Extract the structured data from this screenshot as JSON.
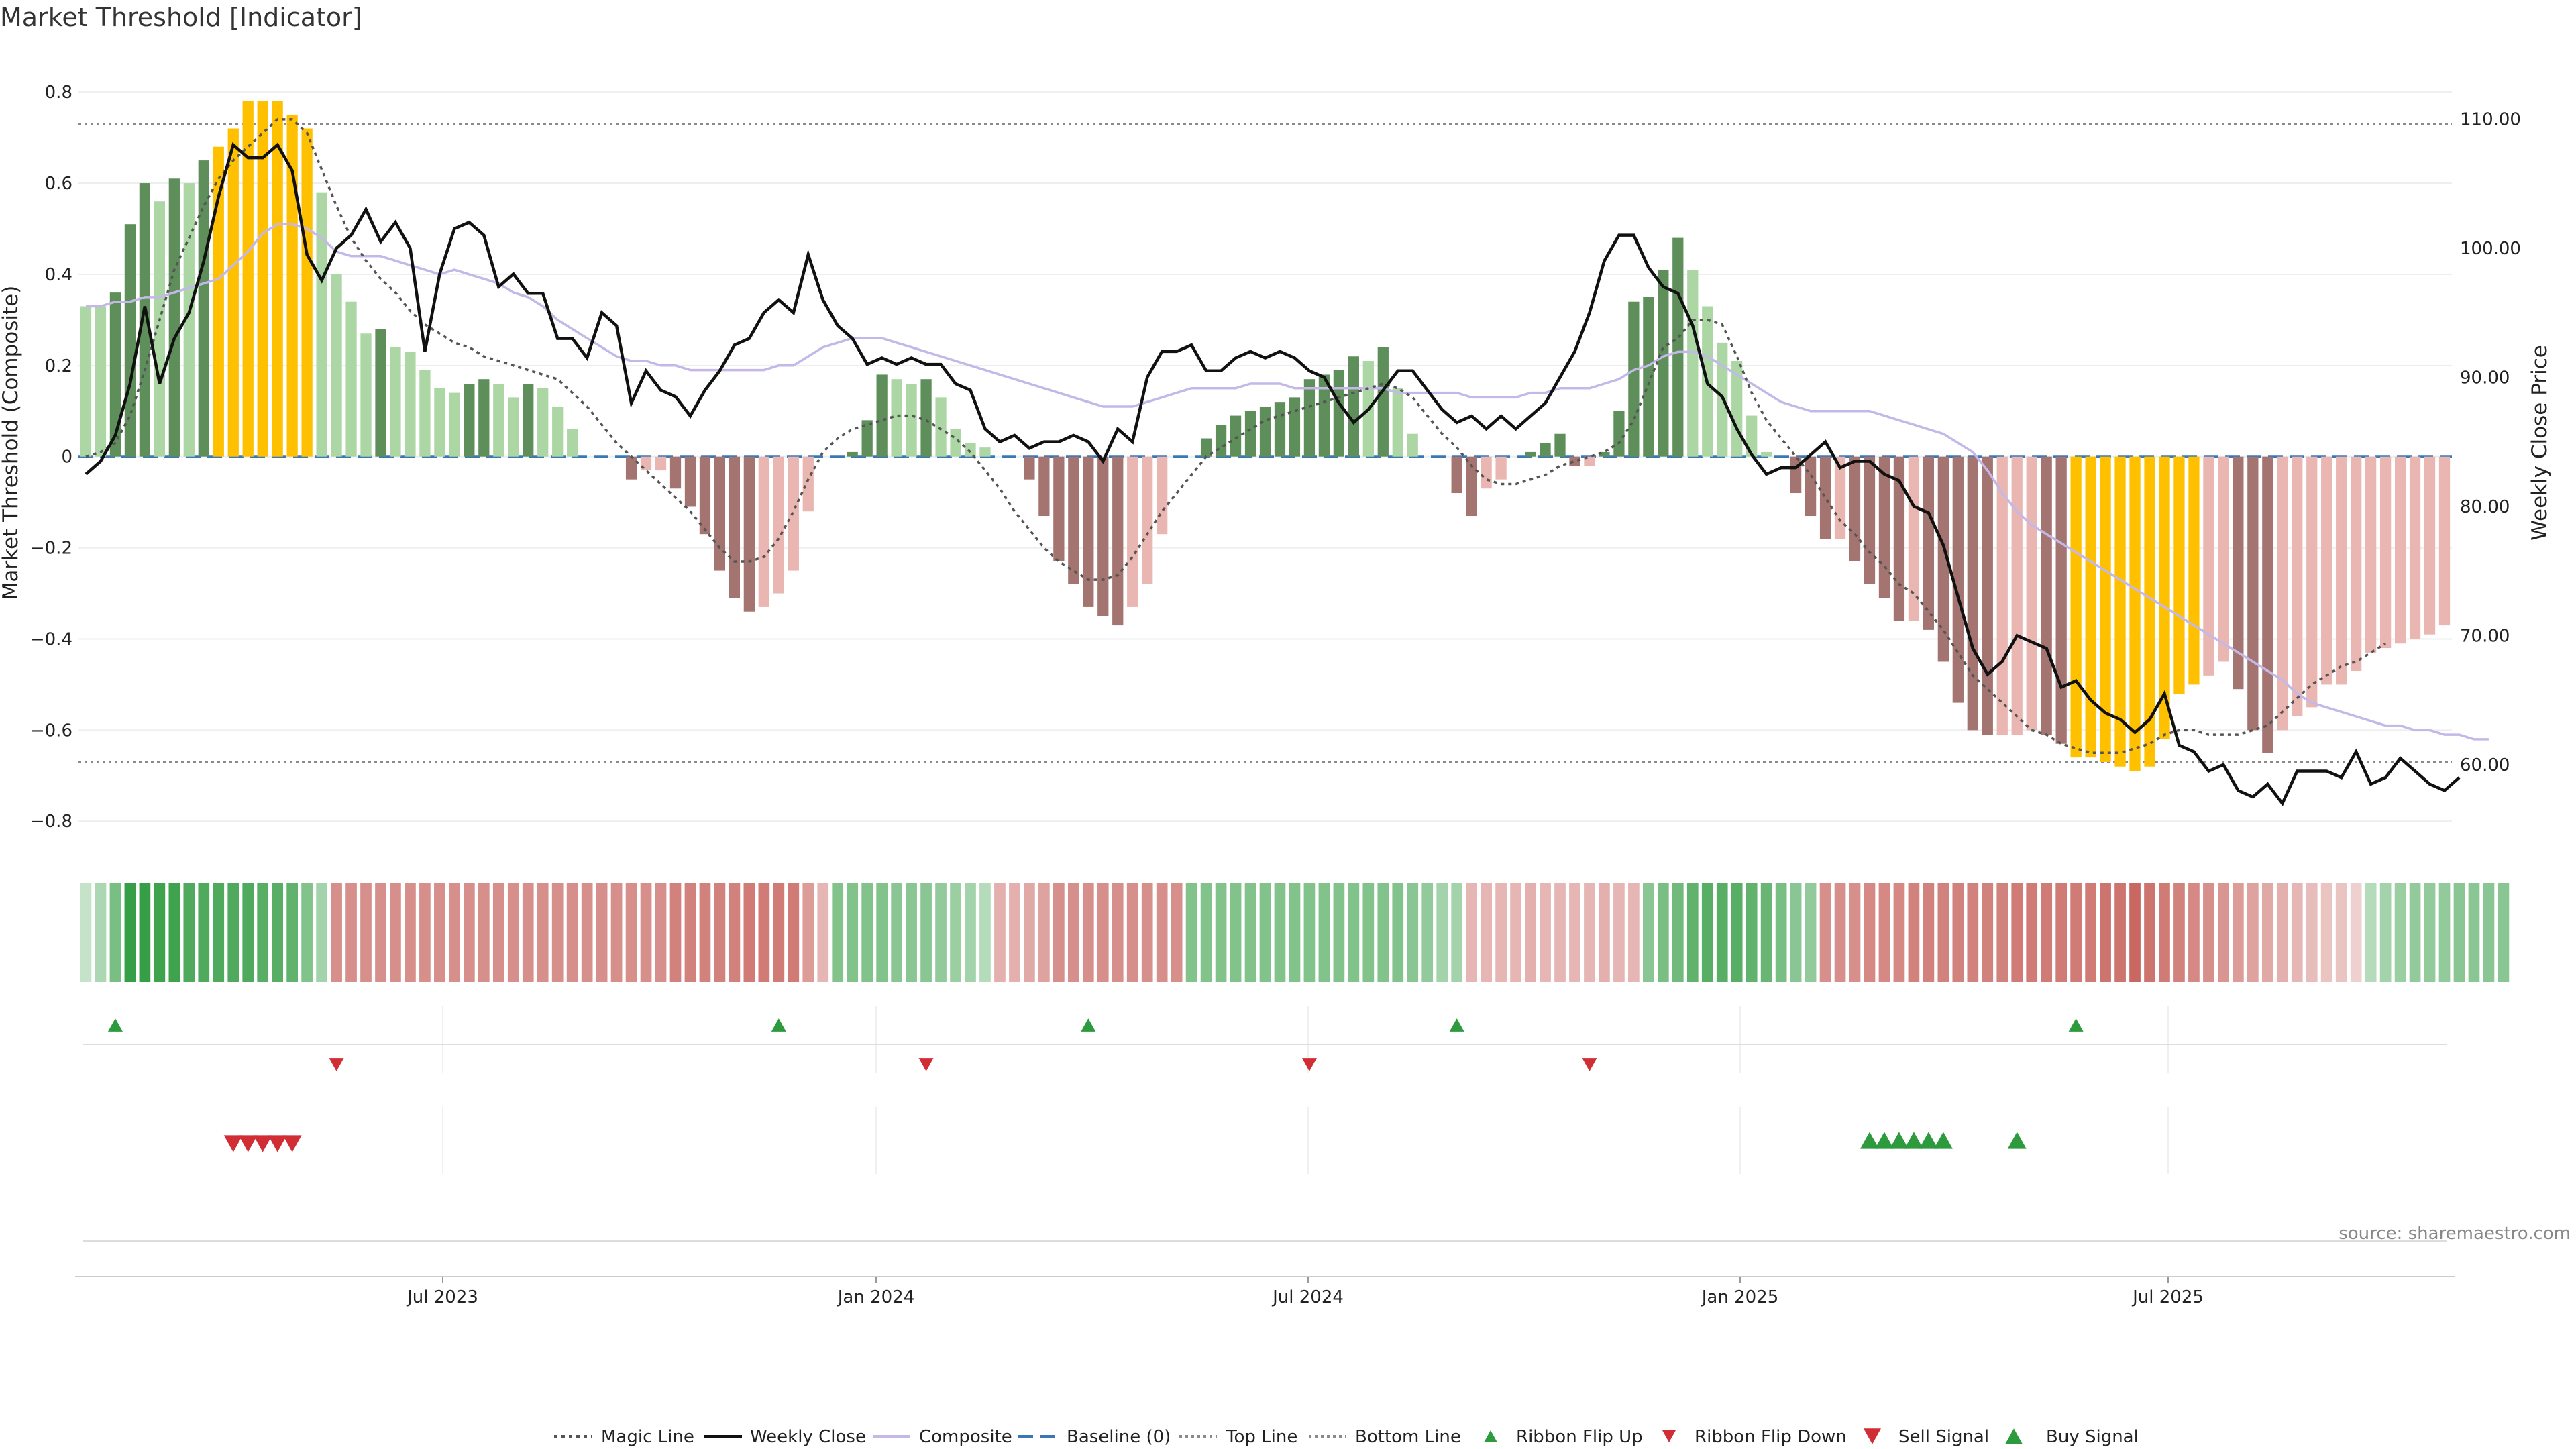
{
  "chart_data": {
    "type": "bar",
    "title": "Market Threshold [Indicator]",
    "ylabel": "Market Threshold (Composite)",
    "ylabel_right": "Weekly Close Price",
    "ylim": [
      -0.86,
      0.84
    ],
    "ylim_right": [
      53.5,
      113.5
    ],
    "yticks": [
      "0.8",
      "0.6",
      "0.4",
      "0.2",
      "0",
      "−0.2",
      "−0.4",
      "−0.6",
      "−0.8"
    ],
    "yticks_right": [
      "110.00",
      "100.00",
      "90.00",
      "80.00",
      "70.00",
      "60.00"
    ],
    "xticks": [
      "Jul 2023",
      "Jan 2024",
      "Jul 2024",
      "Jan 2025",
      "Jul 2025"
    ],
    "grid": true,
    "legend_position": "bottom-center",
    "source": "source: sharemaestro.com",
    "top_line": 0.73,
    "bottom_line": -0.67,
    "legend": [
      "Magic Line",
      "Weekly Close",
      "Composite",
      "Baseline (0)",
      "Top Line",
      "Bottom Line",
      "Ribbon Flip Up",
      "Ribbon Flip Down",
      "Sell Signal",
      "Buy Signal"
    ],
    "colors": {
      "strong_up": "#5e8f5b",
      "weak_up": "#acd7a5",
      "strong_down": "#a37470",
      "weak_down": "#e9b6b1",
      "extreme": "#ffc000",
      "close": "#111111",
      "composite": "#c4b8e8",
      "magic": "#555555",
      "baseline": "#3a78b5",
      "threshold": "#999999",
      "flip_up": "#2e9a3e",
      "flip_down": "#d12d35"
    },
    "series": [
      {
        "name": "Composite",
        "kind": "bar",
        "values": [
          0.33,
          0.33,
          0.36,
          0.51,
          0.6,
          0.56,
          0.61,
          0.6,
          0.65,
          0.68,
          0.72,
          0.78,
          0.78,
          0.78,
          0.75,
          0.72,
          0.58,
          0.4,
          0.34,
          0.27,
          0.28,
          0.24,
          0.23,
          0.19,
          0.15,
          0.14,
          0.16,
          0.17,
          0.16,
          0.13,
          0.16,
          0.15,
          0.11,
          0.06,
          0,
          0,
          0,
          -0.05,
          -0.03,
          -0.03,
          -0.07,
          -0.11,
          -0.17,
          -0.25,
          -0.31,
          -0.34,
          -0.33,
          -0.3,
          -0.25,
          -0.12,
          0,
          0,
          0.01,
          0.08,
          0.18,
          0.17,
          0.16,
          0.17,
          0.13,
          0.06,
          0.03,
          0.02,
          0,
          0,
          -0.05,
          -0.13,
          -0.23,
          -0.28,
          -0.33,
          -0.35,
          -0.37,
          -0.33,
          -0.28,
          -0.17,
          0,
          0,
          0.04,
          0.07,
          0.09,
          0.1,
          0.11,
          0.12,
          0.13,
          0.17,
          0.18,
          0.19,
          0.22,
          0.21,
          0.24,
          0.15,
          0.05,
          0,
          0,
          -0.08,
          -0.13,
          -0.07,
          -0.05,
          0,
          0.01,
          0.03,
          0.05,
          -0.02,
          -0.02,
          0.01,
          0.1,
          0.34,
          0.35,
          0.41,
          0.48,
          0.41,
          0.33,
          0.25,
          0.21,
          0.09,
          0.01,
          0,
          -0.08,
          -0.13,
          -0.18,
          -0.18,
          -0.23,
          -0.28,
          -0.31,
          -0.36,
          -0.36,
          -0.38,
          -0.45,
          -0.54,
          -0.6,
          -0.61,
          -0.61,
          -0.61,
          -0.6,
          -0.61,
          -0.63,
          -0.66,
          -0.66,
          -0.67,
          -0.68,
          -0.69,
          -0.68,
          -0.62,
          -0.52,
          -0.5,
          -0.48,
          -0.45,
          -0.51,
          -0.6,
          -0.65,
          -0.6,
          -0.57,
          -0.55,
          -0.5,
          -0.5,
          -0.47,
          -0.43,
          -0.42,
          -0.41,
          -0.4,
          -0.39,
          -0.37
        ]
      },
      {
        "name": "Magic Line",
        "kind": "line",
        "values": [
          0.0,
          0.01,
          0.03,
          0.09,
          0.19,
          0.3,
          0.41,
          0.48,
          0.55,
          0.61,
          0.65,
          0.68,
          0.71,
          0.74,
          0.74,
          0.71,
          0.63,
          0.55,
          0.48,
          0.43,
          0.39,
          0.36,
          0.32,
          0.29,
          0.27,
          0.25,
          0.24,
          0.22,
          0.21,
          0.2,
          0.19,
          0.18,
          0.17,
          0.14,
          0.11,
          0.07,
          0.03,
          0.0,
          -0.03,
          -0.06,
          -0.09,
          -0.12,
          -0.16,
          -0.2,
          -0.23,
          -0.23,
          -0.22,
          -0.18,
          -0.12,
          -0.05,
          0.01,
          0.04,
          0.06,
          0.07,
          0.08,
          0.09,
          0.09,
          0.08,
          0.06,
          0.04,
          0.01,
          -0.03,
          -0.07,
          -0.12,
          -0.16,
          -0.2,
          -0.23,
          -0.25,
          -0.27,
          -0.27,
          -0.26,
          -0.22,
          -0.17,
          -0.12,
          -0.08,
          -0.04,
          0.0,
          0.02,
          0.04,
          0.06,
          0.08,
          0.09,
          0.1,
          0.11,
          0.12,
          0.13,
          0.14,
          0.15,
          0.16,
          0.15,
          0.13,
          0.09,
          0.05,
          0.02,
          -0.02,
          -0.05,
          -0.06,
          -0.06,
          -0.05,
          -0.04,
          -0.02,
          -0.01,
          0.0,
          0.01,
          0.03,
          0.08,
          0.16,
          0.24,
          0.26,
          0.3,
          0.3,
          0.29,
          0.22,
          0.14,
          0.08,
          0.04,
          0.0,
          -0.04,
          -0.09,
          -0.14,
          -0.17,
          -0.21,
          -0.24,
          -0.28,
          -0.3,
          -0.34,
          -0.38,
          -0.43,
          -0.48,
          -0.51,
          -0.54,
          -0.57,
          -0.6,
          -0.61,
          -0.63,
          -0.64,
          -0.65,
          -0.65,
          -0.65,
          -0.64,
          -0.63,
          -0.61,
          -0.6,
          -0.6,
          -0.61,
          -0.61,
          -0.61,
          -0.6,
          -0.59,
          -0.56,
          -0.53,
          -0.5,
          -0.48,
          -0.46,
          -0.45,
          -0.43,
          -0.41
        ]
      },
      {
        "name": "Weekly Close",
        "kind": "line",
        "values": [
          82.5,
          83.5,
          85.5,
          89.5,
          95.5,
          89.5,
          93.0,
          95.0,
          99.0,
          104.0,
          108.0,
          107.0,
          107.0,
          108.0,
          106.0,
          99.5,
          97.5,
          100.0,
          101.0,
          103.0,
          100.5,
          102.0,
          100.0,
          92.0,
          98.0,
          101.5,
          102.0,
          101.0,
          97.0,
          98.0,
          96.5,
          96.5,
          93.0,
          93.0,
          91.5,
          95.0,
          94.0,
          88.0,
          90.5,
          89.0,
          88.5,
          87.0,
          89.0,
          90.5,
          92.5,
          93.0,
          95.0,
          96.0,
          95.0,
          99.5,
          96.0,
          94.0,
          93.0,
          91.0,
          91.5,
          91.0,
          91.5,
          91.0,
          91.0,
          89.5,
          89.0,
          86.0,
          85.0,
          85.5,
          84.5,
          85.0,
          85.0,
          85.5,
          85.0,
          83.5,
          86.0,
          85.0,
          90.0,
          92.0,
          92.0,
          92.5,
          90.5,
          90.5,
          91.5,
          92.0,
          91.5,
          92.0,
          91.5,
          90.5,
          90.0,
          88.0,
          86.5,
          87.5,
          89.0,
          90.5,
          90.5,
          89.0,
          87.5,
          86.5,
          87.0,
          86.0,
          87.0,
          86.0,
          87.0,
          88.0,
          90.0,
          92.0,
          95.0,
          99.0,
          101.0,
          101.0,
          98.5,
          97.0,
          96.5,
          94.0,
          89.5,
          88.5,
          86.0,
          84.0,
          82.5,
          83.0,
          83.0,
          84.0,
          85.0,
          83.0,
          83.5,
          83.5,
          82.5,
          82.0,
          80.0,
          79.5,
          77.0,
          73.0,
          69.0,
          67.0,
          68.0,
          70.0,
          69.5,
          69.0,
          66.0,
          66.5,
          65.0,
          64.0,
          63.5,
          62.5,
          63.5,
          65.5,
          61.5,
          61.0,
          59.5,
          60.0,
          58.0,
          57.5,
          58.5,
          57.0,
          59.5,
          59.5,
          59.5,
          59.0,
          61.0,
          58.5,
          59.0,
          60.5,
          59.5,
          58.5,
          58.0,
          59.0
        ]
      },
      {
        "name": "Composite",
        "kind": "line",
        "values": [
          0.33,
          0.33,
          0.34,
          0.34,
          0.35,
          0.35,
          0.36,
          0.37,
          0.38,
          0.39,
          0.42,
          0.45,
          0.49,
          0.51,
          0.51,
          0.5,
          0.48,
          0.45,
          0.44,
          0.44,
          0.44,
          0.43,
          0.42,
          0.41,
          0.4,
          0.41,
          0.4,
          0.39,
          0.38,
          0.36,
          0.35,
          0.33,
          0.3,
          0.28,
          0.26,
          0.24,
          0.22,
          0.21,
          0.21,
          0.2,
          0.2,
          0.19,
          0.19,
          0.19,
          0.19,
          0.19,
          0.19,
          0.2,
          0.2,
          0.22,
          0.24,
          0.25,
          0.26,
          0.26,
          0.26,
          0.25,
          0.24,
          0.23,
          0.22,
          0.21,
          0.2,
          0.19,
          0.18,
          0.17,
          0.16,
          0.15,
          0.14,
          0.13,
          0.12,
          0.11,
          0.11,
          0.11,
          0.12,
          0.13,
          0.14,
          0.15,
          0.15,
          0.15,
          0.15,
          0.16,
          0.16,
          0.16,
          0.15,
          0.15,
          0.15,
          0.15,
          0.15,
          0.15,
          0.15,
          0.14,
          0.14,
          0.14,
          0.14,
          0.14,
          0.13,
          0.13,
          0.13,
          0.13,
          0.14,
          0.14,
          0.15,
          0.15,
          0.15,
          0.16,
          0.17,
          0.19,
          0.2,
          0.22,
          0.23,
          0.23,
          0.22,
          0.2,
          0.18,
          0.16,
          0.14,
          0.12,
          0.11,
          0.1,
          0.1,
          0.1,
          0.1,
          0.1,
          0.09,
          0.08,
          0.07,
          0.06,
          0.05,
          0.03,
          0.01,
          -0.03,
          -0.08,
          -0.12,
          -0.15,
          -0.17,
          -0.19,
          -0.21,
          -0.23,
          -0.25,
          -0.27,
          -0.29,
          -0.31,
          -0.33,
          -0.35,
          -0.37,
          -0.39,
          -0.41,
          -0.43,
          -0.45,
          -0.47,
          -0.49,
          -0.52,
          -0.54,
          -0.55,
          -0.56,
          -0.57,
          -0.58,
          -0.59,
          -0.59,
          -0.6,
          -0.6,
          -0.61,
          -0.61,
          -0.62,
          -0.62
        ]
      }
    ],
    "ribbon": {
      "values": [
        0.1,
        0.25,
        0.55,
        0.95,
        0.95,
        0.9,
        0.9,
        0.8,
        0.8,
        0.8,
        0.8,
        0.8,
        0.75,
        0.75,
        0.7,
        0.5,
        0.3,
        -0.6,
        -0.6,
        -0.6,
        -0.6,
        -0.6,
        -0.6,
        -0.6,
        -0.6,
        -0.6,
        -0.6,
        -0.6,
        -0.6,
        -0.6,
        -0.6,
        -0.6,
        -0.6,
        -0.6,
        -0.6,
        -0.6,
        -0.6,
        -0.6,
        -0.6,
        -0.6,
        -0.7,
        -0.7,
        -0.7,
        -0.7,
        -0.7,
        -0.75,
        -0.75,
        -0.75,
        -0.75,
        -0.5,
        -0.3,
        0.5,
        0.5,
        0.5,
        0.5,
        0.45,
        0.45,
        0.45,
        0.4,
        0.35,
        0.3,
        0.2,
        -0.35,
        -0.35,
        -0.4,
        -0.45,
        -0.6,
        -0.6,
        -0.6,
        -0.6,
        -0.6,
        -0.6,
        -0.6,
        -0.6,
        -0.6,
        0.5,
        0.5,
        0.5,
        0.5,
        0.5,
        0.5,
        0.5,
        0.5,
        0.5,
        0.5,
        0.5,
        0.5,
        0.5,
        0.5,
        0.5,
        0.45,
        0.4,
        0.3,
        0.3,
        -0.3,
        -0.3,
        -0.3,
        -0.3,
        -0.35,
        -0.3,
        -0.3,
        -0.3,
        -0.3,
        -0.35,
        -0.3,
        -0.3,
        0.45,
        0.55,
        0.6,
        0.7,
        0.75,
        0.75,
        0.75,
        0.7,
        0.65,
        0.55,
        0.45,
        0.4,
        -0.6,
        -0.6,
        -0.6,
        -0.65,
        -0.65,
        -0.65,
        -0.7,
        -0.7,
        -0.7,
        -0.7,
        -0.7,
        -0.7,
        -0.7,
        -0.75,
        -0.75,
        -0.75,
        -0.75,
        -0.75,
        -0.75,
        -0.8,
        -0.8,
        -0.9,
        -0.8,
        -0.75,
        -0.7,
        -0.65,
        -0.6,
        -0.55,
        -0.5,
        -0.45,
        -0.4,
        -0.35,
        -0.3,
        -0.25,
        -0.2,
        -0.2,
        -0.1,
        0.2,
        0.3,
        0.35,
        0.4,
        0.4,
        0.4,
        0.45,
        0.45,
        0.45,
        0.45
      ]
    },
    "ribbon_flip_up": [
      2,
      47,
      68,
      93,
      135
    ],
    "ribbon_flip_down": [
      17,
      57,
      83,
      102
    ],
    "sell_signal": [
      10,
      11,
      12,
      13,
      14
    ],
    "buy_signal": [
      121,
      122,
      123,
      124,
      125,
      126,
      131
    ]
  }
}
